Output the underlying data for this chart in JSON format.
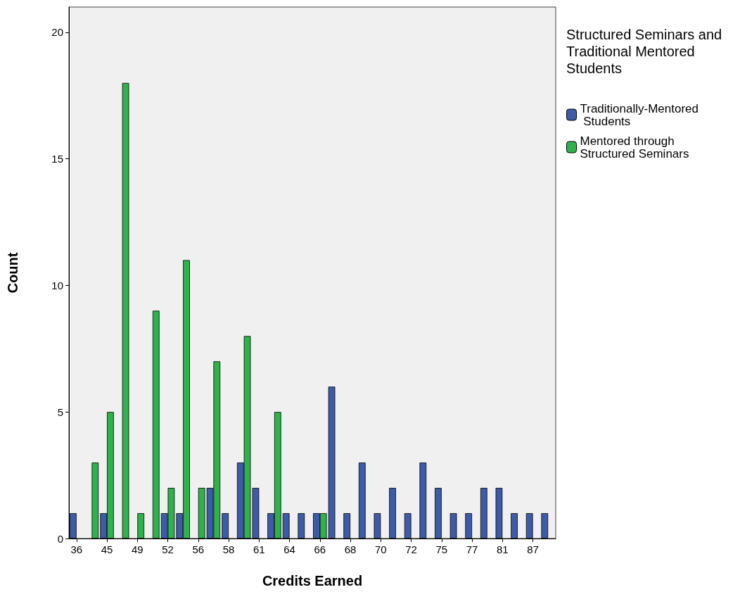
{
  "chart_data": {
    "type": "bar",
    "xlabel": "Credits Earned",
    "ylabel": "Count",
    "legend_title": "Structured Seminars and Traditional Mentored Students",
    "categories": [
      "36",
      null,
      "45",
      null,
      "49",
      null,
      "52",
      null,
      "56",
      null,
      "58",
      null,
      "61",
      null,
      "64",
      null,
      "66",
      null,
      "68",
      null,
      "70",
      null,
      "72",
      null,
      "75",
      null,
      "77",
      null,
      "81",
      null,
      "87",
      null
    ],
    "series": [
      {
        "name": "Traditionally-Mentored Students",
        "color": "#3e5ba9",
        "values": [
          1,
          null,
          1,
          null,
          null,
          null,
          1,
          1,
          null,
          2,
          1,
          3,
          2,
          1,
          1,
          1,
          1,
          6,
          1,
          3,
          1,
          2,
          1,
          3,
          2,
          1,
          1,
          2,
          2,
          1,
          1,
          1
        ]
      },
      {
        "name": "Mentored through Structured Seminars",
        "color": "#2db34a",
        "values": [
          null,
          3,
          5,
          18,
          1,
          9,
          2,
          11,
          2,
          7,
          null,
          8,
          null,
          5,
          null,
          null,
          1,
          null,
          null,
          null,
          null,
          null,
          null,
          null,
          null,
          null,
          null,
          null,
          null,
          null,
          null,
          null
        ]
      }
    ],
    "ylim": [
      0,
      21
    ],
    "yticks": [
      0,
      5,
      10,
      15,
      20
    ],
    "grid": false,
    "legend": "right"
  }
}
